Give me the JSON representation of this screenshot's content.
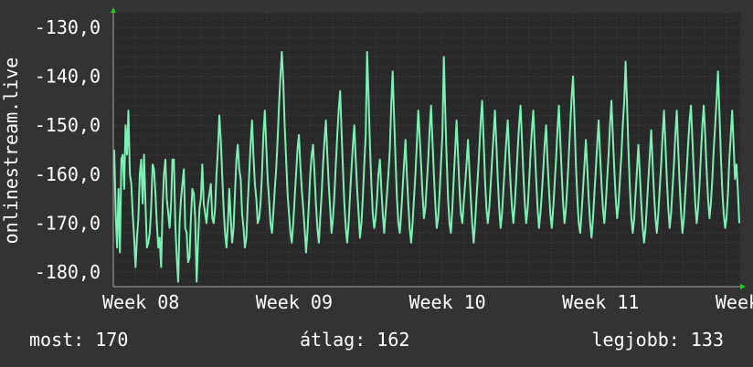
{
  "chart_data": {
    "type": "line",
    "ylabel": "onlinestream.live",
    "ylim": [
      -183,
      -127
    ],
    "y_ticks": [
      "-130,0",
      "-140,0",
      "-150,0",
      "-160,0",
      "-170,0",
      "-180,0"
    ],
    "y_tick_values": [
      -130,
      -140,
      -150,
      -160,
      -170,
      -180
    ],
    "x_ticks": [
      "Week 08",
      "Week 09",
      "Week 10",
      "Week 11",
      "Week 12"
    ],
    "x_tick_values": [
      8,
      9,
      10,
      11,
      12
    ],
    "xlim": [
      8,
      12.09
    ],
    "grid": true,
    "colors": {
      "line": "#7df0b4",
      "background": "#333333",
      "plot": "#292929",
      "grid_major": "#5a3a3a",
      "grid_minor": "#404040",
      "arrow": "#22cc22"
    },
    "series": [
      {
        "values": [
          -155,
          -168,
          -175,
          -163,
          -176,
          -157,
          -156,
          -163,
          -150,
          -156,
          -147,
          -160,
          -162,
          -168,
          -173,
          -179,
          -173,
          -169,
          -160,
          -157,
          -166,
          -156,
          -166,
          -175,
          -174,
          -172,
          -167,
          -158,
          -159,
          -164,
          -170,
          -175,
          -173,
          -179,
          -167,
          -160,
          -157,
          -165,
          -168,
          -171,
          -166,
          -157,
          -157,
          -170,
          -177,
          -182,
          -170,
          -165,
          -162,
          -159,
          -171,
          -172,
          -178,
          -177,
          -169,
          -163,
          -164,
          -169,
          -182,
          -174,
          -167,
          -165,
          -158,
          -166,
          -168,
          -170,
          -166,
          -164,
          -162,
          -169,
          -170,
          -167,
          -160,
          -155,
          -148,
          -153,
          -160,
          -167,
          -172,
          -175,
          -170,
          -163,
          -169,
          -174,
          -171,
          -164,
          -157,
          -154,
          -159,
          -161,
          -168,
          -171,
          -175,
          -173,
          -166,
          -160,
          -154,
          -149,
          -156,
          -162,
          -165,
          -170,
          -169,
          -166,
          -160,
          -152,
          -147,
          -154,
          -161,
          -165,
          -170,
          -172,
          -168,
          -163,
          -159,
          -153,
          -146,
          -140,
          -135,
          -141,
          -150,
          -157,
          -164,
          -168,
          -172,
          -174,
          -170,
          -165,
          -160,
          -155,
          -152,
          -158,
          -163,
          -167,
          -171,
          -176,
          -172,
          -166,
          -160,
          -156,
          -154,
          -160,
          -166,
          -171,
          -174,
          -169,
          -164,
          -158,
          -153,
          -149,
          -156,
          -162,
          -167,
          -172,
          -169,
          -164,
          -158,
          -152,
          -147,
          -143,
          -151,
          -159,
          -166,
          -171,
          -174,
          -170,
          -164,
          -159,
          -154,
          -150,
          -157,
          -163,
          -168,
          -173,
          -170,
          -165,
          -158,
          -152,
          -135,
          -144,
          -154,
          -162,
          -168,
          -171,
          -169,
          -165,
          -160,
          -157,
          -163,
          -168,
          -172,
          -168,
          -164,
          -160,
          -155,
          -146,
          -139,
          -148,
          -157,
          -165,
          -170,
          -172,
          -168,
          -163,
          -158,
          -153,
          -160,
          -166,
          -171,
          -174,
          -170,
          -165,
          -160,
          -154,
          -147,
          -152,
          -158,
          -164,
          -169,
          -167,
          -162,
          -157,
          -151,
          -146,
          -153,
          -160,
          -166,
          -171,
          -169,
          -164,
          -158,
          -152,
          -136,
          -147,
          -157,
          -165,
          -170,
          -172,
          -167,
          -161,
          -155,
          -149,
          -156,
          -163,
          -168,
          -170,
          -166,
          -162,
          -158,
          -153,
          -159,
          -165,
          -170,
          -174,
          -170,
          -165,
          -160,
          -155,
          -149,
          -145,
          -153,
          -161,
          -167,
          -170,
          -167,
          -162,
          -157,
          -152,
          -147,
          -154,
          -161,
          -167,
          -171,
          -168,
          -163,
          -158,
          -153,
          -149,
          -156,
          -162,
          -167,
          -170,
          -166,
          -161,
          -155,
          -150,
          -146,
          -153,
          -160,
          -166,
          -170,
          -167,
          -162,
          -156,
          -151,
          -147,
          -154,
          -161,
          -167,
          -171,
          -168,
          -164,
          -159,
          -154,
          -150,
          -157,
          -163,
          -168,
          -171,
          -167,
          -162,
          -157,
          -151,
          -146,
          -153,
          -160,
          -166,
          -170,
          -167,
          -162,
          -156,
          -150,
          -144,
          -140,
          -149,
          -158,
          -165,
          -170,
          -172,
          -168,
          -163,
          -158,
          -153,
          -159,
          -165,
          -170,
          -173,
          -169,
          -164,
          -159,
          -154,
          -149,
          -156,
          -162,
          -167,
          -170,
          -166,
          -161,
          -156,
          -150,
          -145,
          -152,
          -159,
          -165,
          -169,
          -166,
          -161,
          -156,
          -150,
          -145,
          -137,
          -146,
          -155,
          -163,
          -169,
          -172,
          -169,
          -164,
          -159,
          -154,
          -160,
          -166,
          -171,
          -174,
          -171,
          -166,
          -161,
          -156,
          -151,
          -158,
          -164,
          -169,
          -172,
          -168,
          -163,
          -158,
          -152,
          -147,
          -154,
          -161,
          -167,
          -171,
          -168,
          -163,
          -158,
          -152,
          -147,
          -155,
          -162,
          -168,
          -172,
          -169,
          -164,
          -159,
          -154,
          -149,
          -146,
          -153,
          -160,
          -166,
          -170,
          -167,
          -162,
          -156,
          -150,
          -146,
          -152,
          -159,
          -165,
          -169,
          -166,
          -161,
          -155,
          -150,
          -145,
          -139,
          -147,
          -156,
          -163,
          -168,
          -171,
          -169,
          -164,
          -157,
          -152,
          -147,
          -154,
          -161,
          -158,
          -163,
          -170
        ]
      }
    ]
  },
  "stats": {
    "now": "most: 170",
    "avg": "átlag: 162",
    "best": "legjobb: 133"
  }
}
